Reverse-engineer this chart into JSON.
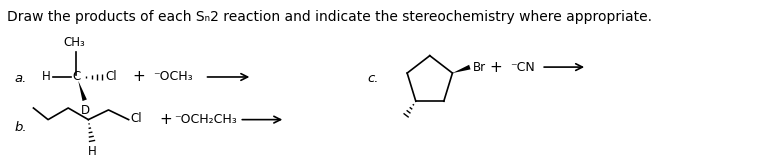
{
  "title": "Draw the products of each Sₙ2 reaction and indicate the stereochemistry where appropriate.",
  "title_fontsize": 10,
  "bg_color": "#ffffff",
  "text_color": "#000000",
  "label_a": "a.",
  "label_b": "b.",
  "label_c": "c."
}
